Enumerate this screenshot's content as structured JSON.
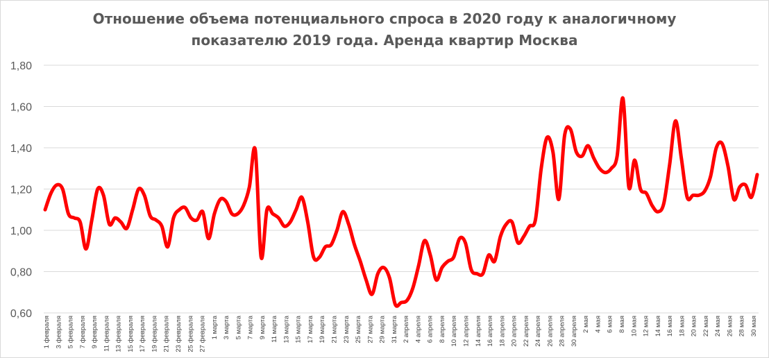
{
  "chart_data": {
    "type": "line",
    "title_line1": "Отношение объема потенциального спроса в 2020 году к аналогичному",
    "title_line2": "показателю 2019 года. Аренда квартир Москва",
    "xlabel": "",
    "ylabel": "",
    "ylim": [
      0.6,
      1.8
    ],
    "grid": true,
    "legend": "none",
    "line_color": "#ff0000",
    "y_ticks": [
      "0,60",
      "0,80",
      "1,00",
      "1,20",
      "1,40",
      "1,60",
      "1,80"
    ],
    "x_tick_labels": [
      "1 февраля",
      "3 февраля",
      "5 февраля",
      "7 февраля",
      "9 февраля",
      "11 февраля",
      "13 февраля",
      "15 февраля",
      "17 февраля",
      "19 февраля",
      "21 февраля",
      "23 февраля",
      "25 февраля",
      "27 февраля",
      "1 марта",
      "3 марта",
      "5 марта",
      "7 марта",
      "9 марта",
      "11 марта",
      "13 марта",
      "15 марта",
      "17 марта",
      "19 марта",
      "21 марта",
      "23 марта",
      "25 марта",
      "27 марта",
      "29 марта",
      "31 марта",
      "2 апреля",
      "4 апреля",
      "6 апреля",
      "8 апреля",
      "10 апреля",
      "12 апреля",
      "14 апреля",
      "16 апреля",
      "18 апреля",
      "20 апреля",
      "22 апреля",
      "24 апреля",
      "26 апреля",
      "28 апреля",
      "30 апреля",
      "2 мая",
      "4 мая",
      "6 мая",
      "8 мая",
      "10 мая",
      "12 мая",
      "14 мая",
      "16 мая",
      "18 мая",
      "20 мая",
      "22 мая",
      "24 мая",
      "26 мая",
      "28 мая",
      "30 мая"
    ],
    "series": [
      {
        "values": [
          1.1,
          1.18,
          1.22,
          1.2,
          1.08,
          1.06,
          1.04,
          0.91,
          1.05,
          1.2,
          1.17,
          1.03,
          1.06,
          1.04,
          1.01,
          1.1,
          1.2,
          1.17,
          1.07,
          1.05,
          1.02,
          0.92,
          1.06,
          1.1,
          1.11,
          1.06,
          1.05,
          1.09,
          0.96,
          1.08,
          1.15,
          1.14,
          1.08,
          1.08,
          1.12,
          1.21,
          1.39,
          0.87,
          1.1,
          1.08,
          1.06,
          1.02,
          1.04,
          1.1,
          1.16,
          1.04,
          0.87,
          0.87,
          0.92,
          0.93,
          1.0,
          1.09,
          1.03,
          0.93,
          0.85,
          0.76,
          0.69,
          0.79,
          0.82,
          0.77,
          0.64,
          0.65,
          0.66,
          0.72,
          0.83,
          0.95,
          0.88,
          0.76,
          0.82,
          0.85,
          0.87,
          0.96,
          0.94,
          0.81,
          0.79,
          0.79,
          0.88,
          0.85,
          0.97,
          1.03,
          1.04,
          0.94,
          0.97,
          1.02,
          1.05,
          1.3,
          1.45,
          1.38,
          1.15,
          1.46,
          1.49,
          1.38,
          1.36,
          1.41,
          1.35,
          1.3,
          1.28,
          1.3,
          1.36,
          1.64,
          1.21,
          1.34,
          1.2,
          1.18,
          1.12,
          1.09,
          1.13,
          1.32,
          1.53,
          1.35,
          1.16,
          1.17,
          1.17,
          1.19,
          1.26,
          1.4,
          1.42,
          1.31,
          1.15,
          1.21,
          1.22,
          1.16,
          1.27
        ]
      }
    ]
  }
}
